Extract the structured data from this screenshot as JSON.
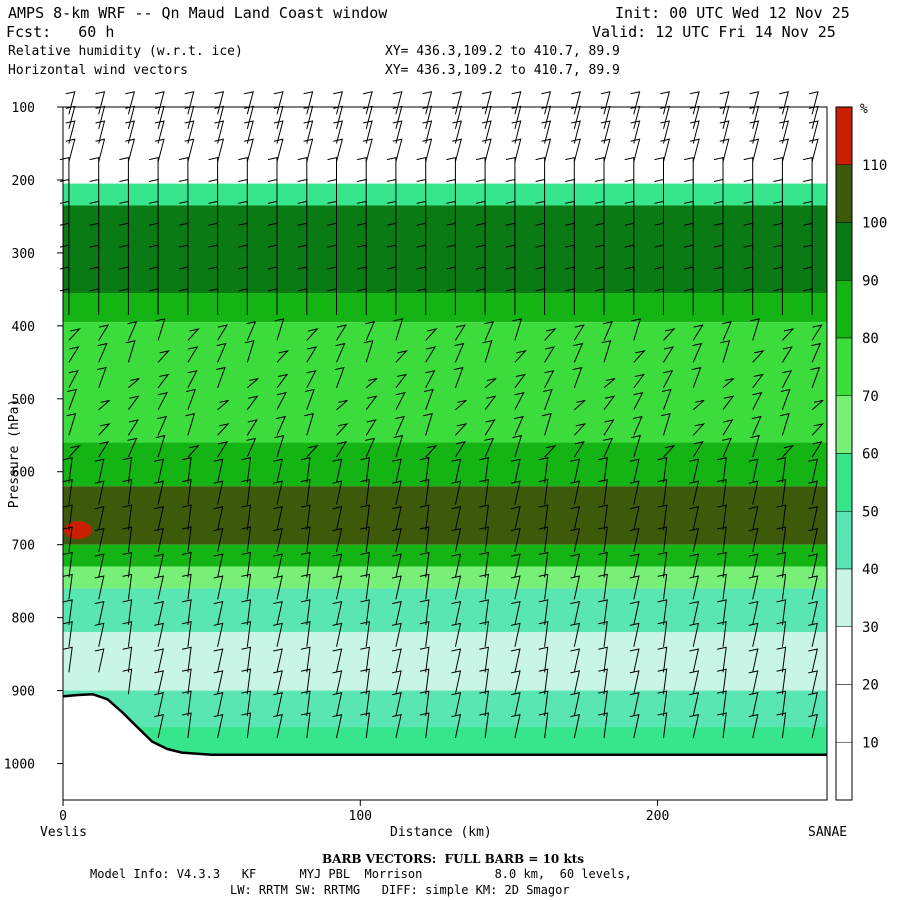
{
  "header": {
    "title": "AMPS 8-km WRF -- Qn Maud Land Coast window",
    "fcst": "Fcst:   60 h",
    "init": "Init: 00 UTC Wed 12 Nov 25",
    "valid": "Valid: 12 UTC Fri 14 Nov 25",
    "field1": "Relative humidity (w.r.t. ice)",
    "field2": "Horizontal wind vectors",
    "xy1": "XY= 436.3,109.2 to 410.7, 89.9",
    "xy2": "XY= 436.3,109.2 to 410.7, 89.9"
  },
  "footer": {
    "barb": "BARB VECTORS:  FULL BARB = 10 kts",
    "model1": "Model Info: V4.3.3   KF      MYJ PBL  Morrison          8.0 km,  60 levels,",
    "model2": "LW: RRTM SW: RRTMG   DIFF: simple KM: 2D Smagor"
  },
  "chart_data": {
    "type": "heatmap",
    "title": "Relative humidity (w.r.t. ice)",
    "xlabel": "Distance (km)",
    "ylabel": "Pressure (hPa)",
    "x_start_label": "Veslis",
    "x_end_label": "SANAE",
    "xlim": [
      0,
      257
    ],
    "ylim": [
      1050,
      100
    ],
    "x_ticks": [
      0,
      100,
      200
    ],
    "y_ticks": [
      100,
      200,
      300,
      400,
      500,
      600,
      700,
      800,
      900,
      1000
    ],
    "colorbar": {
      "unit": "%",
      "levels": [
        10,
        20,
        30,
        40,
        50,
        60,
        70,
        80,
        90,
        100,
        110
      ],
      "colors": [
        "#ffffff",
        "#ffffff",
        "#ffffff",
        "#c8f5e6",
        "#5ae6b4",
        "#37e68c",
        "#78f078",
        "#3cdc3c",
        "#14b414",
        "#0a7a14",
        "#3c5a0a",
        "#c82000"
      ]
    },
    "rh_bands": [
      {
        "p_top": 100,
        "p_bottom": 205,
        "rh": 20
      },
      {
        "p_top": 205,
        "p_bottom": 235,
        "rh": 50
      },
      {
        "p_top": 235,
        "p_bottom": 355,
        "rh": 90
      },
      {
        "p_top": 355,
        "p_bottom": 395,
        "rh": 80
      },
      {
        "p_top": 395,
        "p_bottom": 560,
        "rh": 70
      },
      {
        "p_top": 560,
        "p_bottom": 620,
        "rh": 80
      },
      {
        "p_top": 620,
        "p_bottom": 700,
        "rh": 100
      },
      {
        "p_top": 700,
        "p_bottom": 730,
        "rh": 80
      },
      {
        "p_top": 730,
        "p_bottom": 760,
        "rh": 60
      },
      {
        "p_top": 760,
        "p_bottom": 820,
        "rh": 40
      },
      {
        "p_top": 820,
        "p_bottom": 900,
        "rh": 30
      },
      {
        "p_top": 900,
        "p_bottom": 950,
        "rh": 40
      },
      {
        "p_top": 950,
        "p_bottom": 990,
        "rh": 50
      }
    ],
    "rh_max_spot": {
      "x": 5,
      "p": 680,
      "rh": 110
    },
    "terrain": {
      "x": [
        0,
        5,
        10,
        15,
        20,
        25,
        30,
        35,
        40,
        50,
        60,
        80,
        100,
        150,
        200,
        257
      ],
      "p": [
        908,
        906,
        905,
        912,
        930,
        950,
        970,
        980,
        985,
        988,
        988,
        988,
        988,
        988,
        988,
        988
      ]
    },
    "wind_barbs": {
      "description": "Mostly westerly/northwesterly flow; full barb = 10 kts",
      "x_spacing_km": 10,
      "levels_hPa": [
        110,
        130,
        150,
        175,
        205,
        235,
        265,
        295,
        325,
        355,
        385,
        420,
        450,
        485,
        515,
        550,
        580,
        615,
        645,
        680,
        710,
        745,
        775,
        810,
        840,
        875,
        905,
        935,
        965
      ]
    }
  }
}
